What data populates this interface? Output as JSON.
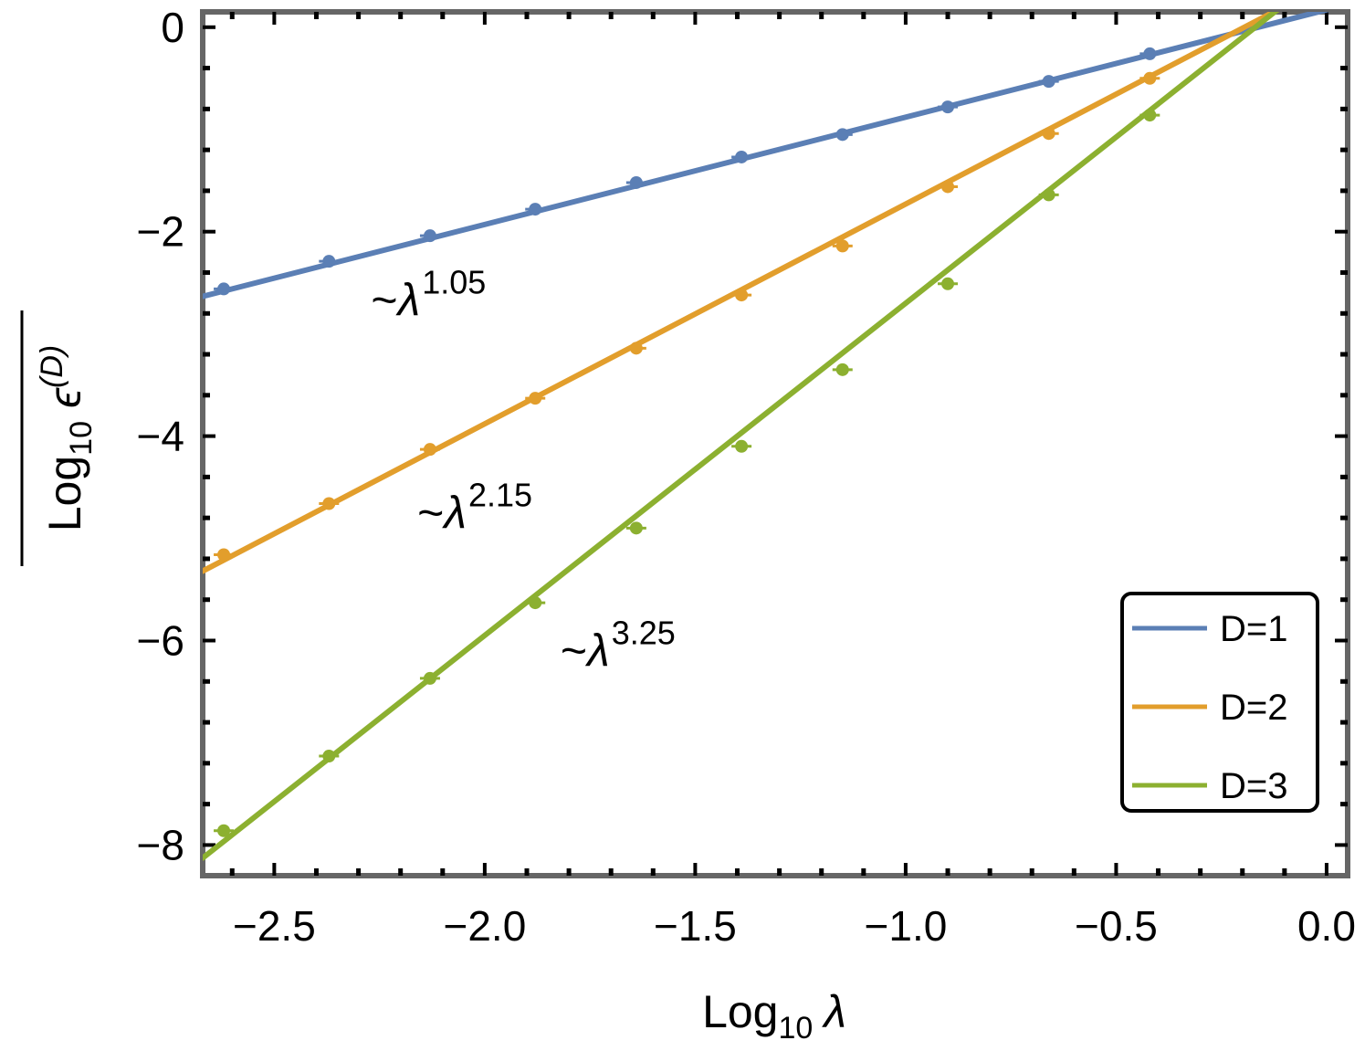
{
  "chart_data": {
    "type": "line",
    "xlabel": {
      "main": "Log",
      "sub": "10",
      "symbol": "λ"
    },
    "ylabel": {
      "main": "Log",
      "sub": "10",
      "symbol": "ϵ",
      "sup": "(D)"
    },
    "xlim": [
      -2.67,
      0.05
    ],
    "ylim": [
      -8.3,
      0.15
    ],
    "xticks": [
      -2.5,
      -2.0,
      -1.5,
      -1.0,
      -0.5,
      0.0
    ],
    "xtick_labels": [
      "−2.5",
      "−2.0",
      "−1.5",
      "−1.0",
      "−0.5",
      "0.0"
    ],
    "yticks": [
      0,
      -2,
      -4,
      -6,
      -8
    ],
    "ytick_labels": [
      "0",
      "−2",
      "−4",
      "−6",
      "−8"
    ],
    "grid": false,
    "legend": "bottom-right",
    "x": [
      -2.62,
      -2.37,
      -2.13,
      -1.88,
      -1.64,
      -1.39,
      -1.15,
      -0.9,
      -0.66,
      -0.42
    ],
    "series": [
      {
        "name": "D=1",
        "legend_label": "D=1",
        "color": "#5b7fb5",
        "values": [
          -2.56,
          -2.29,
          -2.04,
          -1.78,
          -1.52,
          -1.27,
          -1.05,
          -0.78,
          -0.53,
          -0.26
        ],
        "fit": {
          "slope": 1.05,
          "intercept": 0.17
        },
        "annotation": {
          "prefix": "~λ",
          "exponent": "1.05",
          "x": -2.27,
          "y": -2.82
        }
      },
      {
        "name": "D=2",
        "legend_label": "D=2",
        "color": "#e29e2c",
        "values": [
          -5.16,
          -4.66,
          -4.13,
          -3.63,
          -3.14,
          -2.62,
          -2.14,
          -1.56,
          -1.04,
          -0.5
        ],
        "fit": {
          "slope": 2.15,
          "intercept": 0.42
        },
        "annotation": {
          "prefix": "~λ",
          "exponent": "2.15",
          "x": -2.16,
          "y": -4.9
        }
      },
      {
        "name": "D=3",
        "legend_label": "D=3",
        "color": "#8cb030",
        "values": [
          -7.86,
          -7.13,
          -6.37,
          -5.63,
          -4.9,
          -4.1,
          -3.35,
          -2.51,
          -1.64,
          -0.86
        ],
        "fit": {
          "slope": 3.25,
          "intercept": 0.55
        },
        "annotation": {
          "prefix": "~λ",
          "exponent": "3.25",
          "x": -1.82,
          "y": -6.25
        }
      }
    ]
  }
}
